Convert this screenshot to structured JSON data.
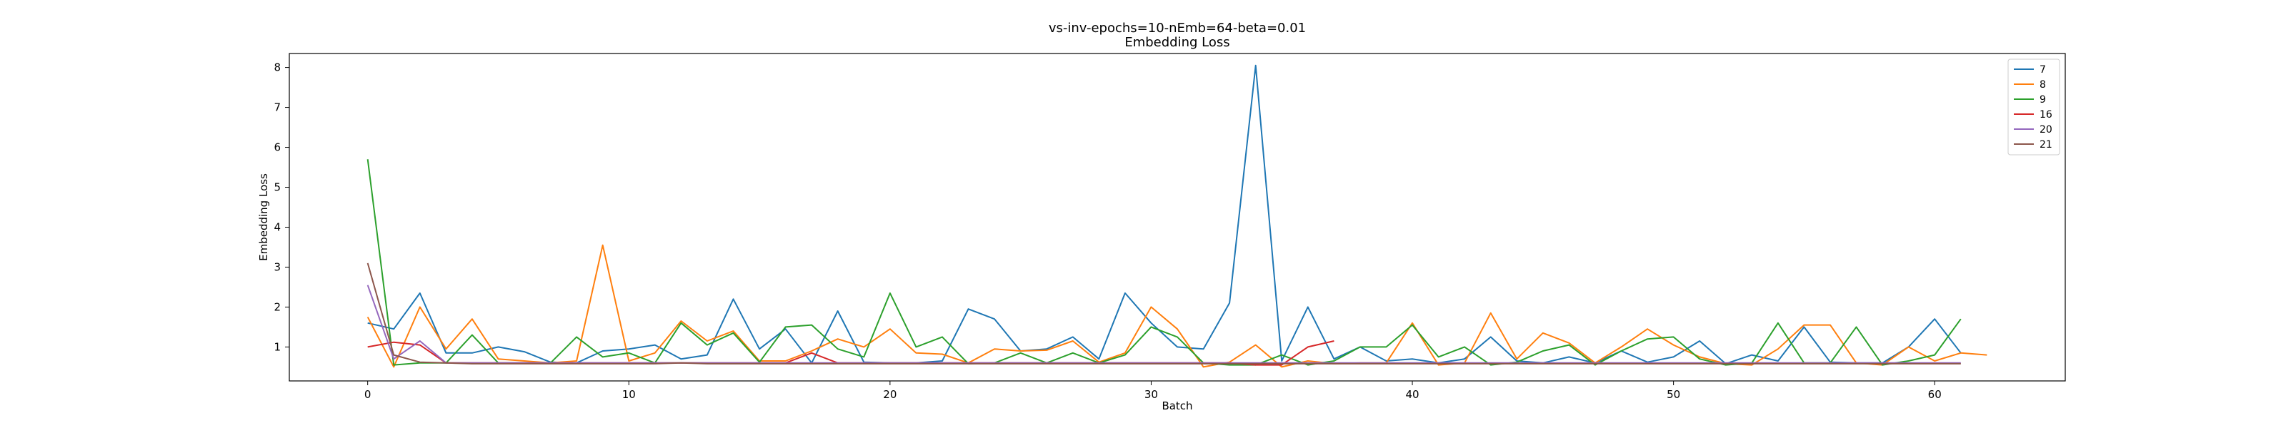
{
  "chart_data": {
    "type": "line",
    "title": "vs-inv-epochs=10-nEmb=64-beta=0.01",
    "subtitle": "Embedding Loss",
    "xlabel": "Batch",
    "ylabel": "Embedding Loss",
    "xlim": [
      -3,
      65.0
    ],
    "ylim": [
      0.15,
      8.35
    ],
    "xticks": [
      0,
      10,
      20,
      30,
      40,
      50,
      60
    ],
    "yticks": [
      1,
      2,
      3,
      4,
      5,
      6,
      7,
      8
    ],
    "grid": false,
    "legend_position": "top-right",
    "series": [
      {
        "name": "7",
        "color": "#1f77b4",
        "x_start": 0,
        "values": [
          1.6,
          1.45,
          2.35,
          0.85,
          0.85,
          1.0,
          0.88,
          0.62,
          0.6,
          0.9,
          0.95,
          1.05,
          0.7,
          0.8,
          2.2,
          0.95,
          1.45,
          0.6,
          1.9,
          0.62,
          0.6,
          0.6,
          0.65,
          1.95,
          1.7,
          0.9,
          0.95,
          1.25,
          0.7,
          2.35,
          1.6,
          1.0,
          0.95,
          2.1,
          8.05,
          0.65,
          2.0,
          0.7,
          1.0,
          0.65,
          0.7,
          0.6,
          0.7,
          1.25,
          0.65,
          0.6,
          0.75,
          0.6,
          0.9,
          0.62,
          0.75,
          1.15,
          0.58,
          0.8,
          0.65,
          1.5,
          0.62,
          0.6,
          0.6,
          1.0,
          1.7,
          0.85
        ]
      },
      {
        "name": "8",
        "color": "#ff7f0e",
        "x_start": 0,
        "values": [
          1.75,
          0.5,
          2.0,
          0.95,
          1.7,
          0.7,
          0.65,
          0.6,
          0.65,
          3.55,
          0.65,
          0.85,
          1.65,
          1.15,
          1.4,
          0.65,
          0.65,
          0.9,
          1.2,
          1.0,
          1.45,
          0.85,
          0.82,
          0.6,
          0.95,
          0.9,
          0.92,
          1.15,
          0.62,
          0.85,
          2.0,
          1.45,
          0.5,
          0.62,
          1.05,
          0.5,
          0.65,
          0.58,
          0.6,
          0.6,
          1.6,
          0.55,
          0.6,
          1.85,
          0.7,
          1.35,
          1.1,
          0.6,
          1.0,
          1.45,
          1.05,
          0.75,
          0.58,
          0.55,
          0.95,
          1.55,
          1.55,
          0.6,
          0.55,
          1.0,
          0.65,
          0.85,
          0.8
        ]
      },
      {
        "name": "9",
        "color": "#2ca02c",
        "x_start": 0,
        "values": [
          5.7,
          0.55,
          0.6,
          0.6,
          1.3,
          0.6,
          0.6,
          0.6,
          1.25,
          0.75,
          0.85,
          0.6,
          1.6,
          1.05,
          1.35,
          0.62,
          1.5,
          1.55,
          0.95,
          0.75,
          2.35,
          1.0,
          1.25,
          0.58,
          0.6,
          0.85,
          0.6,
          0.85,
          0.6,
          0.8,
          1.5,
          1.25,
          0.6,
          0.55,
          0.55,
          0.8,
          0.55,
          0.65,
          1.0,
          1.0,
          1.55,
          0.75,
          1.0,
          0.55,
          0.62,
          0.9,
          1.05,
          0.55,
          0.9,
          1.2,
          1.25,
          0.7,
          0.55,
          0.6,
          1.6,
          0.6,
          0.6,
          1.5,
          0.55,
          0.65,
          0.8,
          1.7
        ]
      },
      {
        "name": "16",
        "color": "#d62728",
        "x_start": 0,
        "values": [
          1.0,
          1.12,
          1.05,
          0.6,
          0.6,
          0.6,
          0.6,
          0.6,
          0.6,
          0.6,
          0.6,
          0.6,
          0.6,
          0.6,
          0.6,
          0.6,
          0.6,
          0.85,
          0.6,
          0.6,
          0.6,
          0.6,
          0.6,
          0.6,
          0.6,
          0.6,
          0.6,
          0.6,
          0.6,
          0.6,
          0.6,
          0.6,
          0.6,
          0.6,
          0.55,
          0.55,
          1.0,
          1.15
        ]
      },
      {
        "name": "20",
        "color": "#9467bd",
        "x_start": 0,
        "values": [
          2.55,
          0.7,
          1.15,
          0.6,
          0.6,
          0.6,
          0.6,
          0.6,
          0.6,
          0.6,
          0.6,
          0.6,
          0.6,
          0.6,
          0.6,
          0.6,
          0.6,
          0.6,
          0.6,
          0.6,
          0.6,
          0.6,
          0.6,
          0.6,
          0.6,
          0.6,
          0.6,
          0.6,
          0.6,
          0.6,
          0.6,
          0.6,
          0.6,
          0.6,
          0.6,
          0.6,
          0.6,
          0.6,
          0.6,
          0.6,
          0.6,
          0.6,
          0.6,
          0.6,
          0.6,
          0.6,
          0.6,
          0.6,
          0.6,
          0.6,
          0.6,
          0.6,
          0.6,
          0.6,
          0.6,
          0.6,
          0.6,
          0.6,
          0.6,
          0.6,
          0.6,
          0.6
        ]
      },
      {
        "name": "21",
        "color": "#8c564b",
        "x_start": 0,
        "values": [
          3.1,
          0.8,
          0.62,
          0.6,
          0.58,
          0.58,
          0.58,
          0.58,
          0.58,
          0.58,
          0.58,
          0.58,
          0.6,
          0.58,
          0.58,
          0.58,
          0.58,
          0.58,
          0.58,
          0.58,
          0.58,
          0.58,
          0.58,
          0.58,
          0.58,
          0.58,
          0.58,
          0.58,
          0.58,
          0.58,
          0.58,
          0.58,
          0.58,
          0.58,
          0.58,
          0.58,
          0.58,
          0.58,
          0.58,
          0.58,
          0.58,
          0.58,
          0.58,
          0.58,
          0.58,
          0.58,
          0.58,
          0.58,
          0.58,
          0.58,
          0.58,
          0.58,
          0.58,
          0.58,
          0.58,
          0.58,
          0.58,
          0.58,
          0.58,
          0.58,
          0.58,
          0.58
        ]
      }
    ]
  }
}
